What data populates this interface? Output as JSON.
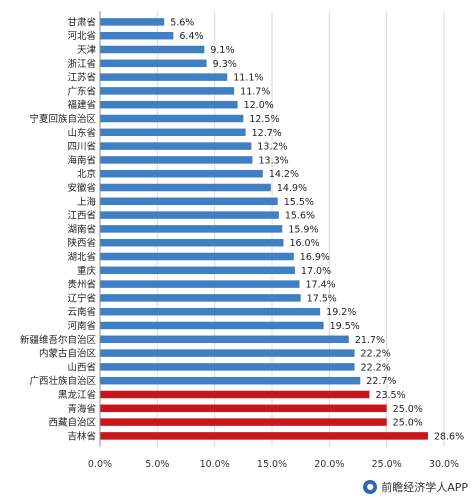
{
  "chart_data": {
    "type": "bar",
    "orientation": "horizontal",
    "categories": [
      "甘肃省",
      "河北省",
      "天津",
      "浙江省",
      "江苏省",
      "广东省",
      "福建省",
      "宁夏回族自治区",
      "山东省",
      "四川省",
      "海南省",
      "北京",
      "安徽省",
      "上海",
      "江西省",
      "湖南省",
      "陕西省",
      "湖北省",
      "重庆",
      "贵州省",
      "辽宁省",
      "云南省",
      "河南省",
      "新疆维吾尔自治区",
      "内蒙古自治区",
      "山西省",
      "广西壮族自治区",
      "黑龙江省",
      "青海省",
      "西藏自治区",
      "吉林省"
    ],
    "values": [
      5.6,
      6.4,
      9.1,
      9.3,
      11.1,
      11.7,
      12.0,
      12.5,
      12.7,
      13.2,
      13.3,
      14.2,
      14.9,
      15.5,
      15.6,
      15.9,
      16.0,
      16.9,
      17.0,
      17.4,
      17.5,
      19.2,
      19.5,
      21.7,
      22.2,
      22.2,
      22.7,
      23.5,
      25.0,
      25.0,
      28.6
    ],
    "value_labels": [
      "5.6%",
      "6.4%",
      "9.1%",
      "9.3%",
      "11.1%",
      "11.7%",
      "12.0%",
      "12.5%",
      "12.7%",
      "13.2%",
      "13.3%",
      "14.2%",
      "14.9%",
      "15.5%",
      "15.6%",
      "15.9%",
      "16.0%",
      "16.9%",
      "17.0%",
      "17.4%",
      "17.5%",
      "19.2%",
      "19.5%",
      "21.7%",
      "22.2%",
      "22.2%",
      "22.7%",
      "23.5%",
      "25.0%",
      "25.0%",
      "28.6%"
    ],
    "highlight": [
      false,
      false,
      false,
      false,
      false,
      false,
      false,
      false,
      false,
      false,
      false,
      false,
      false,
      false,
      false,
      false,
      false,
      false,
      false,
      false,
      false,
      false,
      false,
      false,
      false,
      false,
      false,
      true,
      true,
      true,
      true
    ],
    "xlim": [
      0,
      30
    ],
    "xticks": [
      "0.0%",
      "5.0%",
      "10.0%",
      "15.0%",
      "20.0%",
      "25.0%",
      "30.0%"
    ],
    "title": "",
    "xlabel": "",
    "ylabel": "",
    "grid": true,
    "colors": {
      "default": "#3f7fc4",
      "highlight": "#c9161d",
      "grid": "#d9d9d9",
      "axis": "#8c8c8c"
    }
  },
  "footer": {
    "brand": "前瞻经济学人APP",
    "logo_icon": "wechat-style-badge-icon"
  }
}
